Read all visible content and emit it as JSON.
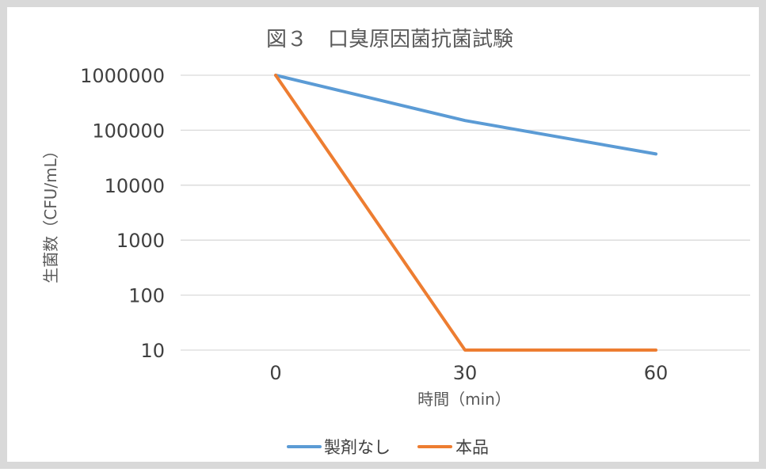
{
  "chart_data": {
    "type": "line",
    "title": "図３　口臭原因菌抗菌試験",
    "xlabel": "時間（min）",
    "ylabel": "生菌数（CFU/mL）",
    "categories": [
      "0",
      "30",
      "60"
    ],
    "y_scale": "log",
    "ylim": [
      10,
      1000000
    ],
    "y_ticks": [
      "1000000",
      "100000",
      "10000",
      "1000",
      "100",
      "10"
    ],
    "grid": true,
    "legend_position": "bottom",
    "series": [
      {
        "name": "製剤なし",
        "color": "#5b9bd5",
        "values": [
          1000000,
          150000,
          37000
        ]
      },
      {
        "name": "本品",
        "color": "#ed7d31",
        "values": [
          1000000,
          10,
          10
        ]
      }
    ]
  }
}
